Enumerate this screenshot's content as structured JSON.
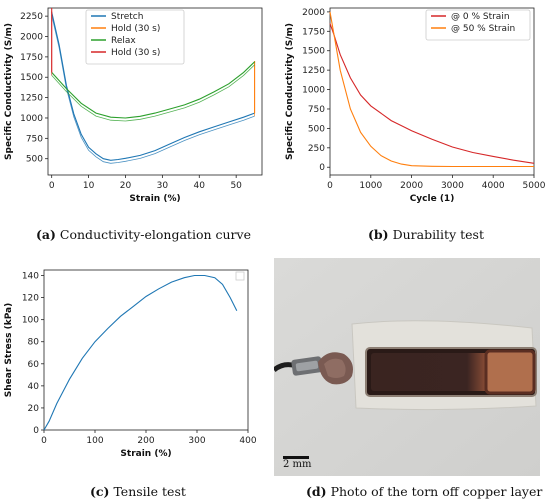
{
  "figure": {
    "panels": [
      {
        "letter": "(a)",
        "caption": "Conductivity-elongation curve"
      },
      {
        "letter": "(b)",
        "caption": "Durability test"
      },
      {
        "letter": "(c)",
        "caption": "Tensile test"
      },
      {
        "letter": "(d)",
        "caption": "Photo of the torn off copper layer"
      }
    ],
    "scalebar_label": "2 mm"
  },
  "chart_data": [
    {
      "type": "line",
      "xlabel": "Strain (%)",
      "ylabel": "Specific Conductivity (S/m)",
      "xlim": [
        -1,
        57
      ],
      "ylim": [
        300,
        2350
      ],
      "xticks": [
        0,
        10,
        20,
        30,
        40,
        50
      ],
      "yticks": [
        500,
        750,
        1000,
        1250,
        1500,
        1750,
        2000,
        2250
      ],
      "legend_position": "top-center",
      "grid": false,
      "series": [
        {
          "name": "Stretch",
          "color": "#1f77b4",
          "x": [
            0,
            2,
            4,
            6,
            8,
            10,
            12,
            14,
            16,
            18,
            20,
            24,
            28,
            32,
            36,
            40,
            44,
            48,
            52,
            55
          ],
          "y": [
            2300,
            1900,
            1400,
            1050,
            800,
            640,
            560,
            500,
            480,
            490,
            505,
            540,
            600,
            680,
            760,
            830,
            890,
            950,
            1010,
            1060
          ]
        },
        {
          "name": "Hold (30 s)",
          "color": "#ff7f0e",
          "x": [
            55,
            55,
            55
          ],
          "y": [
            1060,
            1400,
            1700
          ]
        },
        {
          "name": "Relax",
          "color": "#2ca02c",
          "x": [
            55,
            52,
            48,
            44,
            40,
            36,
            32,
            28,
            24,
            20,
            16,
            12,
            8,
            4,
            0
          ],
          "y": [
            1690,
            1560,
            1420,
            1320,
            1230,
            1160,
            1110,
            1060,
            1020,
            1000,
            1010,
            1060,
            1180,
            1360,
            1560
          ]
        },
        {
          "name": "Hold (30 s)",
          "color": "#d62728",
          "x": [
            0,
            0,
            0
          ],
          "y": [
            1560,
            2000,
            2350
          ]
        }
      ]
    },
    {
      "type": "line",
      "xlabel": "Cycle (1)",
      "ylabel": "Specific Conductivity (S/m)",
      "xlim": [
        0,
        5000
      ],
      "ylim": [
        -100,
        2050
      ],
      "xticks": [
        0,
        1000,
        2000,
        3000,
        4000,
        5000
      ],
      "yticks": [
        0,
        250,
        500,
        750,
        1000,
        1250,
        1500,
        1750,
        2000
      ],
      "legend_position": "top-right",
      "grid": false,
      "series": [
        {
          "name": "@ 0 % Strain",
          "color": "#d62728",
          "x": [
            0,
            100,
            250,
            500,
            750,
            1000,
            1500,
            2000,
            2500,
            3000,
            3500,
            4000,
            4500,
            5000
          ],
          "y": [
            1850,
            1700,
            1450,
            1150,
            930,
            790,
            600,
            470,
            360,
            260,
            190,
            140,
            90,
            50
          ]
        },
        {
          "name": "@ 50 % Strain",
          "color": "#ff7f0e",
          "x": [
            0,
            100,
            250,
            500,
            750,
            1000,
            1250,
            1500,
            1750,
            2000,
            2500,
            3000,
            4000,
            5000
          ],
          "y": [
            2000,
            1700,
            1250,
            750,
            450,
            270,
            150,
            80,
            40,
            20,
            12,
            10,
            10,
            10
          ]
        }
      ]
    },
    {
      "type": "line",
      "xlabel": "Strain (%)",
      "ylabel": "Shear Stress (kPa)",
      "xlim": [
        0,
        400
      ],
      "ylim": [
        0,
        145
      ],
      "xticks": [
        0,
        100,
        200,
        300,
        400
      ],
      "yticks": [
        0,
        20,
        40,
        60,
        80,
        100,
        120,
        140
      ],
      "grid": false,
      "series": [
        {
          "color": "#1f77b4",
          "x": [
            0,
            10,
            25,
            50,
            75,
            100,
            125,
            150,
            175,
            200,
            225,
            250,
            275,
            295,
            315,
            335,
            350,
            365,
            378
          ],
          "y": [
            0,
            8,
            24,
            46,
            65,
            80,
            92,
            103,
            112,
            121,
            128,
            134,
            138,
            140,
            140,
            138,
            132,
            120,
            108
          ]
        }
      ]
    }
  ]
}
